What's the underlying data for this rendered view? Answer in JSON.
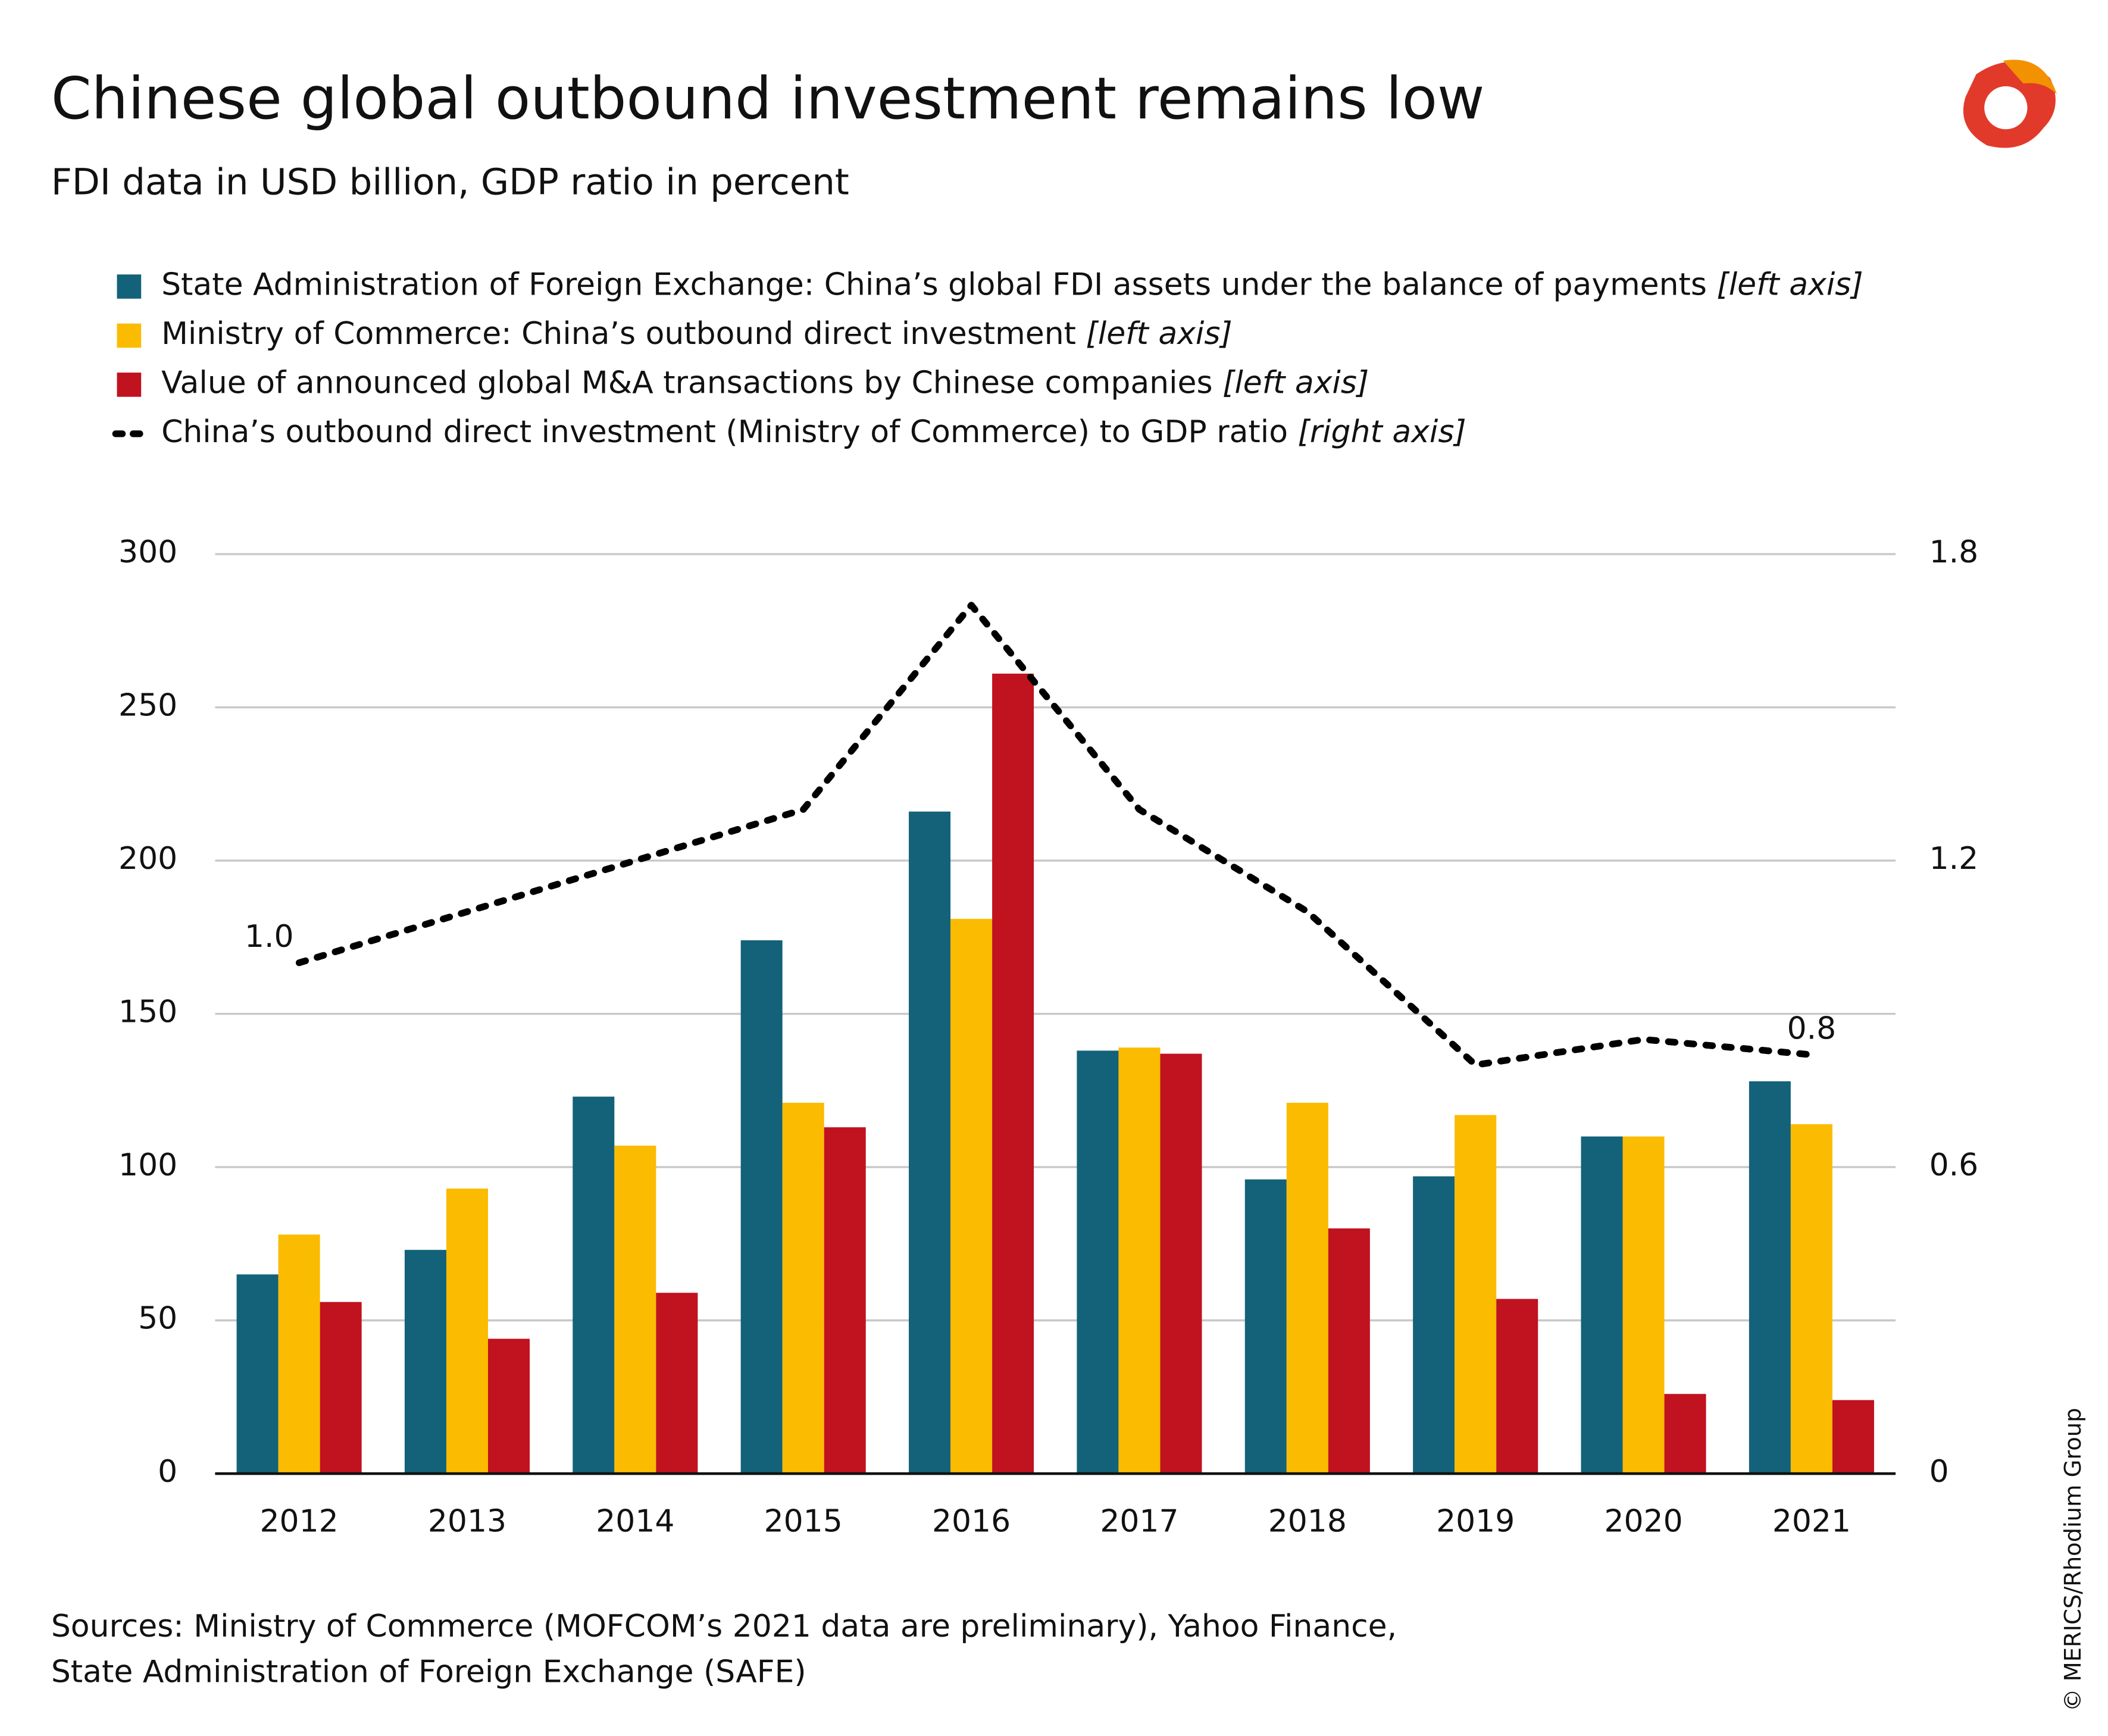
{
  "chart_data": {
    "type": "bar",
    "title": "Chinese global outbound investment remains low",
    "subtitle": "FDI data in USD billion, GDP ratio in percent",
    "categories": [
      "2012",
      "2013",
      "2014",
      "2015",
      "2016",
      "2017",
      "2018",
      "2019",
      "2020",
      "2021"
    ],
    "series": [
      {
        "name": "State Administration of Foreign Exchange: China’s global FDI assets under the balance of payments",
        "legend_note": "[left axis]",
        "color": "#13627a",
        "values": [
          65,
          73,
          123,
          174,
          216,
          138,
          96,
          97,
          110,
          128
        ]
      },
      {
        "name": "Ministry of Commerce: China’s outbound direct investment",
        "legend_note": "[left axis]",
        "color": "#fbbb00",
        "values": [
          78,
          93,
          107,
          121,
          181,
          139,
          121,
          117,
          110,
          114
        ]
      },
      {
        "name": "Value of announced global M&A transactions by Chinese companies",
        "legend_note": "[left axis]",
        "color": "#c0121f",
        "values": [
          56,
          44,
          59,
          113,
          261,
          137,
          80,
          57,
          26,
          24
        ]
      },
      {
        "name": "China’s outbound direct investment (Ministry of Commerce) to GDP ratio",
        "legend_note": "[right axis]",
        "color": "#000000",
        "type": "line",
        "axis": "y2",
        "values": [
          1.0,
          1.1,
          1.2,
          1.3,
          1.7,
          1.3,
          1.1,
          0.8,
          0.85,
          0.82
        ],
        "value_labels": [
          "1.0",
          null,
          null,
          null,
          null,
          null,
          null,
          null,
          null,
          "0.8"
        ]
      }
    ],
    "ylim": [
      0,
      300
    ],
    "yticks": [
      0,
      50,
      100,
      150,
      200,
      250,
      300
    ],
    "y2lim": [
      0,
      1.8
    ],
    "y2ticks": [
      0,
      0.6,
      1.2,
      1.8
    ],
    "grid": true,
    "notes": [
      "Sources: Ministry of Commerce (MOFCOM’s 2021 data are preliminary), Yahoo Finance,",
      "State Administration of Foreign Exchange (SAFE)"
    ],
    "copyright": "© MERICS/Rhodium Group"
  }
}
